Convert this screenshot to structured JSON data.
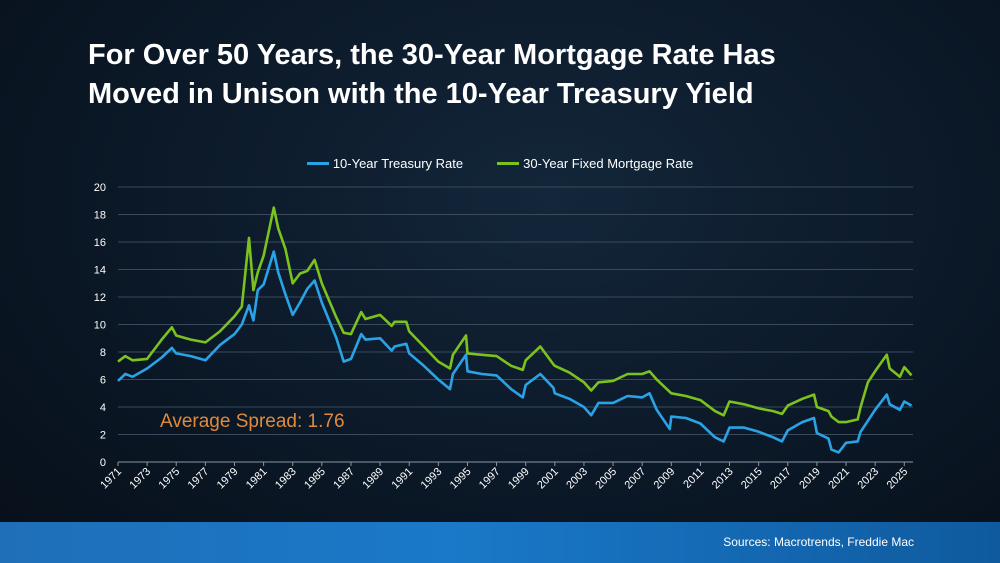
{
  "title_line1": "For Over 50 Years, the 30-Year Mortgage Rate Has",
  "title_line2": "Moved in Unison with the 10-Year Treasury Yield",
  "source": "Sources: Macrotrends, Freddie Mac",
  "colors": {
    "treasury": "#2aa3e6",
    "mortgage": "#7cc21e",
    "annotation": "#e08a3c",
    "grid": "#3a4a5c"
  },
  "chart_data": {
    "type": "line",
    "title": "For Over 50 Years, the 30-Year Mortgage Rate Has Moved in Unison with the 10-Year Treasury Yield",
    "xlabel": "",
    "ylabel": "",
    "xlim": [
      1971,
      2025.6
    ],
    "ylim": [
      0,
      20
    ],
    "yticks": [
      0,
      2,
      4,
      6,
      8,
      10,
      12,
      14,
      16,
      18,
      20
    ],
    "xticks": [
      1971,
      1973,
      1975,
      1977,
      1979,
      1981,
      1983,
      1985,
      1987,
      1989,
      1991,
      1993,
      1995,
      1997,
      1999,
      2001,
      2003,
      2005,
      2007,
      2009,
      2011,
      2013,
      2015,
      2017,
      2019,
      2021,
      2023,
      2025
    ],
    "grid": true,
    "legend_position": "top-center",
    "annotation": "Average Spread: 1.76",
    "series": [
      {
        "name": "10-Year Treasury Rate",
        "x": [
          1971,
          1971.5,
          1972,
          1973,
          1974,
          1974.7,
          1975,
          1976,
          1977,
          1978,
          1979,
          1979.5,
          1980,
          1980.3,
          1980.6,
          1981,
          1981.7,
          1982,
          1982.5,
          1983,
          1983.5,
          1984,
          1984.5,
          1985,
          1986,
          1986.5,
          1987,
          1987.7,
          1988,
          1989,
          1989.8,
          1990,
          1990.8,
          1991,
          1992,
          1993,
          1993.8,
          1994,
          1994.9,
          1995,
          1996,
          1997,
          1998,
          1998.8,
          1999,
          2000,
          2000.9,
          2001,
          2002,
          2003,
          2003.5,
          2004,
          2005,
          2006,
          2007,
          2007.5,
          2008,
          2008.9,
          2009,
          2010,
          2011,
          2012,
          2012.6,
          2013,
          2014,
          2015,
          2016,
          2016.6,
          2017,
          2018,
          2018.8,
          2019,
          2019.8,
          2020,
          2020.5,
          2021,
          2021.8,
          2022,
          2022.5,
          2023,
          2023.8,
          2024,
          2024.7,
          2025,
          2025.5
        ],
        "values": [
          5.9,
          6.4,
          6.2,
          6.8,
          7.6,
          8.3,
          7.9,
          7.7,
          7.4,
          8.5,
          9.3,
          10.0,
          11.4,
          10.3,
          12.5,
          12.9,
          15.3,
          13.8,
          12.2,
          10.7,
          11.6,
          12.6,
          13.2,
          11.6,
          9.0,
          7.3,
          7.5,
          9.3,
          8.9,
          9.0,
          8.1,
          8.4,
          8.6,
          7.9,
          7.0,
          6.0,
          5.3,
          6.4,
          7.8,
          6.6,
          6.4,
          6.3,
          5.3,
          4.7,
          5.6,
          6.4,
          5.4,
          5.0,
          4.6,
          4.0,
          3.4,
          4.3,
          4.3,
          4.8,
          4.7,
          5.0,
          3.8,
          2.4,
          3.3,
          3.2,
          2.8,
          1.8,
          1.5,
          2.5,
          2.5,
          2.2,
          1.8,
          1.5,
          2.3,
          2.9,
          3.2,
          2.1,
          1.7,
          0.9,
          0.7,
          1.4,
          1.5,
          2.2,
          3.0,
          3.8,
          4.9,
          4.2,
          3.8,
          4.4,
          4.1
        ]
      },
      {
        "name": "30-Year Fixed Mortgage Rate",
        "x": [
          1971,
          1971.5,
          1972,
          1973,
          1974,
          1974.7,
          1975,
          1976,
          1977,
          1978,
          1979,
          1979.5,
          1980,
          1980.3,
          1980.6,
          1981,
          1981.7,
          1982,
          1982.5,
          1983,
          1983.5,
          1984,
          1984.5,
          1985,
          1986,
          1986.5,
          1987,
          1987.7,
          1988,
          1989,
          1989.8,
          1990,
          1990.8,
          1991,
          1992,
          1993,
          1993.8,
          1994,
          1994.9,
          1995,
          1996,
          1997,
          1998,
          1998.8,
          1999,
          2000,
          2000.9,
          2001,
          2002,
          2003,
          2003.5,
          2004,
          2005,
          2006,
          2007,
          2007.5,
          2008,
          2008.9,
          2009,
          2010,
          2011,
          2012,
          2012.6,
          2013,
          2014,
          2015,
          2016,
          2016.6,
          2017,
          2018,
          2018.8,
          2019,
          2019.8,
          2020,
          2020.5,
          2021,
          2021.8,
          2022,
          2022.5,
          2023,
          2023.8,
          2024,
          2024.7,
          2025,
          2025.5
        ],
        "values": [
          7.3,
          7.7,
          7.4,
          7.5,
          8.9,
          9.8,
          9.2,
          8.9,
          8.7,
          9.5,
          10.6,
          11.3,
          16.3,
          12.5,
          13.8,
          15.0,
          18.5,
          17.0,
          15.5,
          13.0,
          13.7,
          13.9,
          14.7,
          13.0,
          10.5,
          9.4,
          9.3,
          10.9,
          10.4,
          10.7,
          9.9,
          10.2,
          10.2,
          9.5,
          8.4,
          7.3,
          6.8,
          7.8,
          9.2,
          7.9,
          7.8,
          7.7,
          7.0,
          6.7,
          7.4,
          8.4,
          7.1,
          7.0,
          6.5,
          5.8,
          5.2,
          5.8,
          5.9,
          6.4,
          6.4,
          6.6,
          6.0,
          5.1,
          5.0,
          4.8,
          4.5,
          3.7,
          3.4,
          4.4,
          4.2,
          3.9,
          3.7,
          3.5,
          4.1,
          4.6,
          4.9,
          4.0,
          3.7,
          3.3,
          2.9,
          2.9,
          3.1,
          4.0,
          5.8,
          6.6,
          7.8,
          6.8,
          6.2,
          6.9,
          6.3
        ]
      }
    ]
  }
}
